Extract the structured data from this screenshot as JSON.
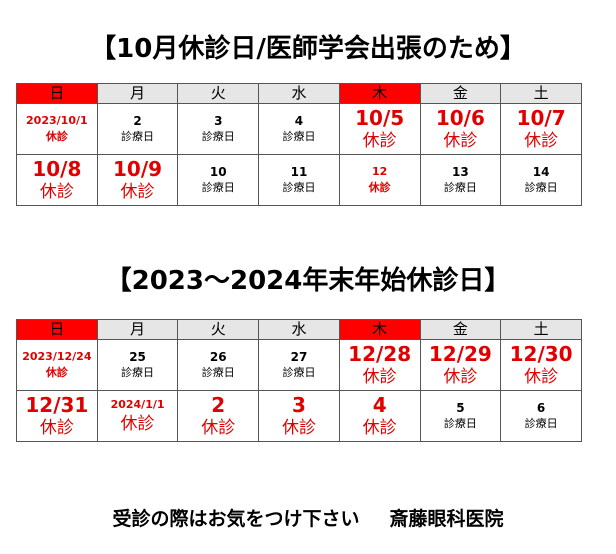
{
  "notice1": {
    "title": "【10月休診日/医師学会出張のため】",
    "weekdays": [
      "日",
      "月",
      "火",
      "水",
      "木",
      "金",
      "土"
    ],
    "weeks": [
      [
        {
          "day": "2023/10/1",
          "note": "休診",
          "style": "small-red"
        },
        {
          "day": "2",
          "note": "診療日",
          "style": "normal"
        },
        {
          "day": "3",
          "note": "診療日",
          "style": "normal"
        },
        {
          "day": "4",
          "note": "診療日",
          "style": "normal"
        },
        {
          "day": "10/5",
          "note": "休診",
          "style": "big-red"
        },
        {
          "day": "10/6",
          "note": "休診",
          "style": "big-red"
        },
        {
          "day": "10/7",
          "note": "休診",
          "style": "big-red"
        }
      ],
      [
        {
          "day": "10/8",
          "note": "休診",
          "style": "big-red"
        },
        {
          "day": "10/9",
          "note": "休診",
          "style": "big-red"
        },
        {
          "day": "10",
          "note": "診療日",
          "style": "normal"
        },
        {
          "day": "11",
          "note": "診療日",
          "style": "normal"
        },
        {
          "day": "12",
          "note": "休診",
          "style": "small-red"
        },
        {
          "day": "13",
          "note": "診療日",
          "style": "normal"
        },
        {
          "day": "14",
          "note": "診療日",
          "style": "normal"
        }
      ]
    ]
  },
  "notice2": {
    "title": "【2023～2024年末年始休診日】",
    "weekdays": [
      "日",
      "月",
      "火",
      "水",
      "木",
      "金",
      "土"
    ],
    "weeks": [
      [
        {
          "day": "2023/12/24",
          "note": "休診",
          "style": "small-red"
        },
        {
          "day": "25",
          "note": "診療日",
          "style": "normal"
        },
        {
          "day": "26",
          "note": "診療日",
          "style": "normal"
        },
        {
          "day": "27",
          "note": "診療日",
          "style": "normal"
        },
        {
          "day": "12/28",
          "note": "休診",
          "style": "big-red"
        },
        {
          "day": "12/29",
          "note": "休診",
          "style": "big-red"
        },
        {
          "day": "12/30",
          "note": "休診",
          "style": "big-red"
        }
      ],
      [
        {
          "day": "12/31",
          "note": "休診",
          "style": "big-red"
        },
        {
          "day": "2024/1/1",
          "note": "休診",
          "style": "mixed-red"
        },
        {
          "day": "2",
          "note": "休診",
          "style": "big-red"
        },
        {
          "day": "3",
          "note": "休診",
          "style": "big-red"
        },
        {
          "day": "4",
          "note": "休診",
          "style": "big-red"
        },
        {
          "day": "5",
          "note": "診療日",
          "style": "normal"
        },
        {
          "day": "6",
          "note": "診療日",
          "style": "normal"
        }
      ]
    ]
  },
  "footer": {
    "message": "受診の際はお気をつけ下さい",
    "clinic": "斎藤眼科医院"
  },
  "colors": {
    "red": "#ff0000",
    "header_gray": "#e6e6e6"
  }
}
